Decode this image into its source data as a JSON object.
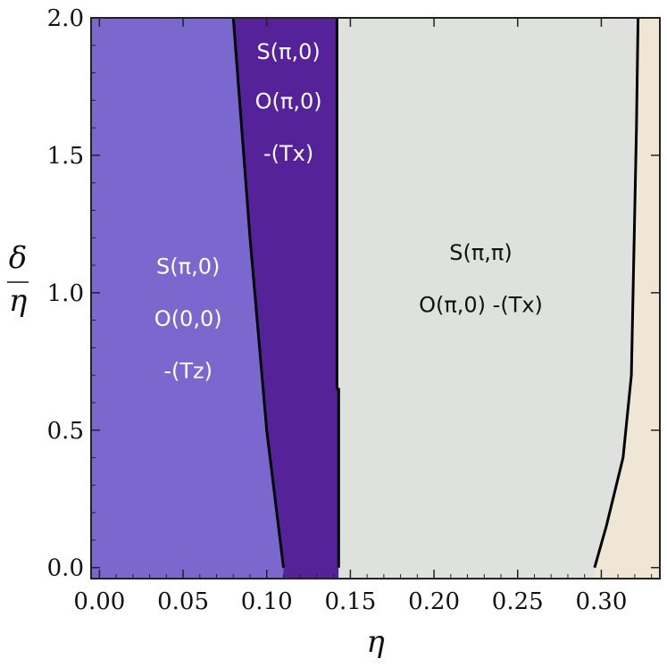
{
  "chart_data": {
    "type": "phase-diagram",
    "xlabel": "η",
    "ylabel": {
      "numerator": "δ",
      "denominator": "η"
    },
    "xlim": [
      -0.005,
      0.335
    ],
    "ylim": [
      -0.04,
      2.0
    ],
    "xticks": [
      {
        "value": 0.0,
        "label": "0.00"
      },
      {
        "value": 0.05,
        "label": "0.05"
      },
      {
        "value": 0.1,
        "label": "0.10"
      },
      {
        "value": 0.15,
        "label": "0.15"
      },
      {
        "value": 0.2,
        "label": "0.20"
      },
      {
        "value": 0.25,
        "label": "0.25"
      },
      {
        "value": 0.3,
        "label": "0.30"
      }
    ],
    "yticks": [
      {
        "value": 0.0,
        "label": "0.0"
      },
      {
        "value": 0.5,
        "label": "0.5"
      },
      {
        "value": 1.0,
        "label": "1.0"
      },
      {
        "value": 1.5,
        "label": "1.5"
      },
      {
        "value": 2.0,
        "label": "2.0"
      }
    ],
    "colors": {
      "region1": "#7b68cf",
      "region2": "#55229a",
      "region3": "#dfe1df",
      "region4": "#f0e6d6",
      "boundary": "#000000",
      "label_light": "#ffffff",
      "label_dark": "#111111"
    },
    "boundaries": [
      {
        "name": "b1",
        "points": [
          [
            0.11,
            0.0
          ],
          [
            0.1,
            0.5
          ],
          [
            0.09,
            1.2
          ],
          [
            0.08,
            2.0
          ]
        ]
      },
      {
        "name": "b2",
        "points": [
          [
            0.143,
            0.0
          ],
          [
            0.143,
            0.65
          ],
          [
            0.142,
            0.65
          ],
          [
            0.142,
            2.0
          ]
        ]
      },
      {
        "name": "b3",
        "points": [
          [
            0.296,
            0.0
          ],
          [
            0.303,
            0.15
          ],
          [
            0.313,
            0.4
          ],
          [
            0.318,
            0.7
          ],
          [
            0.319,
            1.0
          ],
          [
            0.321,
            1.6
          ],
          [
            0.322,
            2.0
          ]
        ]
      }
    ],
    "regions": [
      {
        "name": "region1",
        "lines": [
          "S(π,0)",
          "O(0,0)",
          "-(Tz)"
        ],
        "label_x": 0.053,
        "label_y": [
          1.07,
          0.88,
          0.69
        ],
        "label_color": "label_light"
      },
      {
        "name": "region2",
        "lines": [
          "S(π,0)",
          "O(π,0)",
          "-(Tx)"
        ],
        "label_x": 0.113,
        "label_y": [
          1.85,
          1.67,
          1.48
        ],
        "label_color": "label_light"
      },
      {
        "name": "region3",
        "lines": [
          "S(π,π)",
          "O(π,0) -(Tx)"
        ],
        "label_x": 0.228,
        "label_y": [
          1.12,
          0.93
        ],
        "label_color": "label_dark"
      }
    ]
  }
}
